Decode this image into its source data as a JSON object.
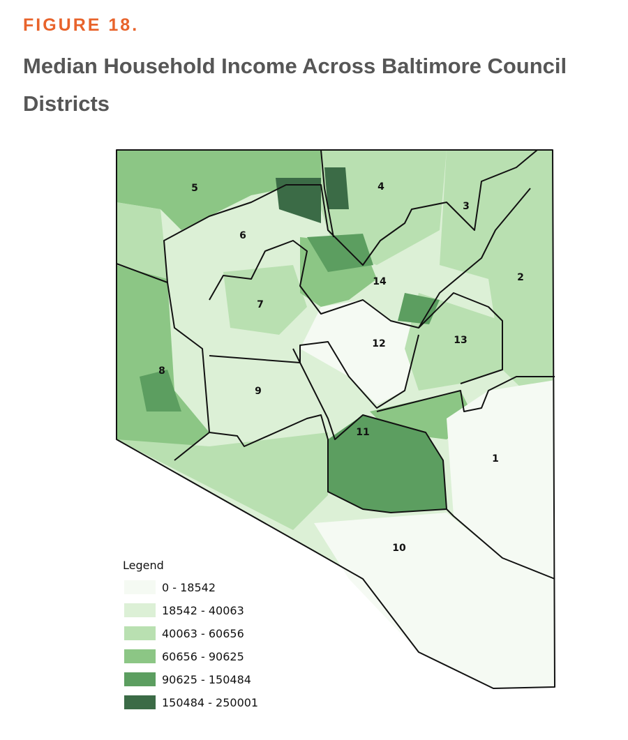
{
  "figure_label": "FIGURE 18.",
  "title": "Median Household Income Across Baltimore Council Districts",
  "districts": [
    "1",
    "2",
    "3",
    "4",
    "5",
    "6",
    "7",
    "8",
    "9",
    "10",
    "11",
    "12",
    "13",
    "14"
  ],
  "legend": {
    "title": "Legend",
    "items": [
      {
        "label": "0 - 18542",
        "color": "#f5faf3"
      },
      {
        "label": "18542 - 40063",
        "color": "#dcf0d6"
      },
      {
        "label": "40063 - 60656",
        "color": "#b9e0b1"
      },
      {
        "label": "60656 - 90625",
        "color": "#8cc685"
      },
      {
        "label": "90625 - 150484",
        "color": "#5c9e60"
      },
      {
        "label": "150484 - 250001",
        "color": "#3b6b46"
      }
    ]
  }
}
